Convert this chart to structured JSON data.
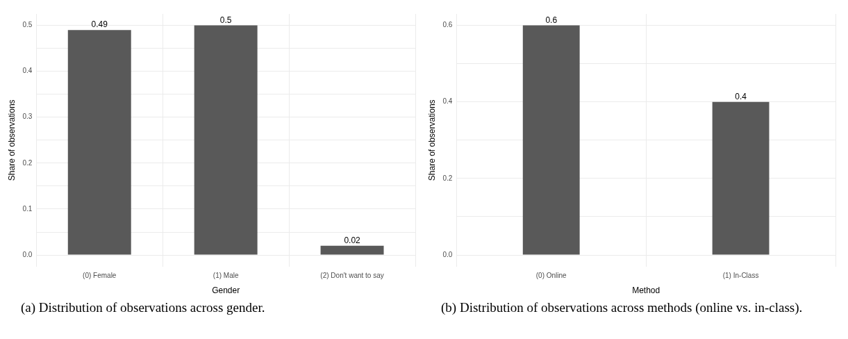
{
  "chart_data": [
    {
      "type": "bar",
      "xlabel": "Gender",
      "ylabel": "Share of observations",
      "categories": [
        "(0) Female",
        "(1) Male",
        "(2) Don't want to say"
      ],
      "values": [
        0.49,
        0.5,
        0.02
      ],
      "color": "#595959",
      "ylim": [
        -0.025,
        0.525
      ],
      "yticks": [
        {
          "value": 0,
          "label": "0.0"
        },
        {
          "value": 0.05,
          "label": null
        },
        {
          "value": 0.1,
          "label": "0.1"
        },
        {
          "value": 0.15,
          "label": null
        },
        {
          "value": 0.2,
          "label": "0.2"
        },
        {
          "value": 0.25,
          "label": null
        },
        {
          "value": 0.3,
          "label": "0.3"
        },
        {
          "value": 0.35,
          "label": null
        },
        {
          "value": 0.4,
          "label": "0.4"
        },
        {
          "value": 0.45,
          "label": null
        },
        {
          "value": 0.5,
          "label": "0.5"
        }
      ],
      "grid": true,
      "legend": false,
      "data_labels": true,
      "annotations": [
        "(a) Distribution of observations across gender."
      ]
    },
    {
      "type": "bar",
      "xlabel": "Method",
      "ylabel": "Share of observations",
      "categories": [
        "(0) Online",
        "(1) In-Class"
      ],
      "values": [
        0.6,
        0.4
      ],
      "color": "#595959",
      "ylim": [
        -0.03,
        0.63
      ],
      "yticks": [
        {
          "value": 0,
          "label": "0.0"
        },
        {
          "value": 0.1,
          "label": null
        },
        {
          "value": 0.2,
          "label": "0.2"
        },
        {
          "value": 0.3,
          "label": null
        },
        {
          "value": 0.4,
          "label": "0.4"
        },
        {
          "value": 0.5,
          "label": null
        },
        {
          "value": 0.6,
          "label": "0.6"
        }
      ],
      "grid": true,
      "legend": false,
      "data_labels": true,
      "annotations": [
        "(b) Distribution of observations across methods (online vs. in-class)."
      ]
    }
  ]
}
